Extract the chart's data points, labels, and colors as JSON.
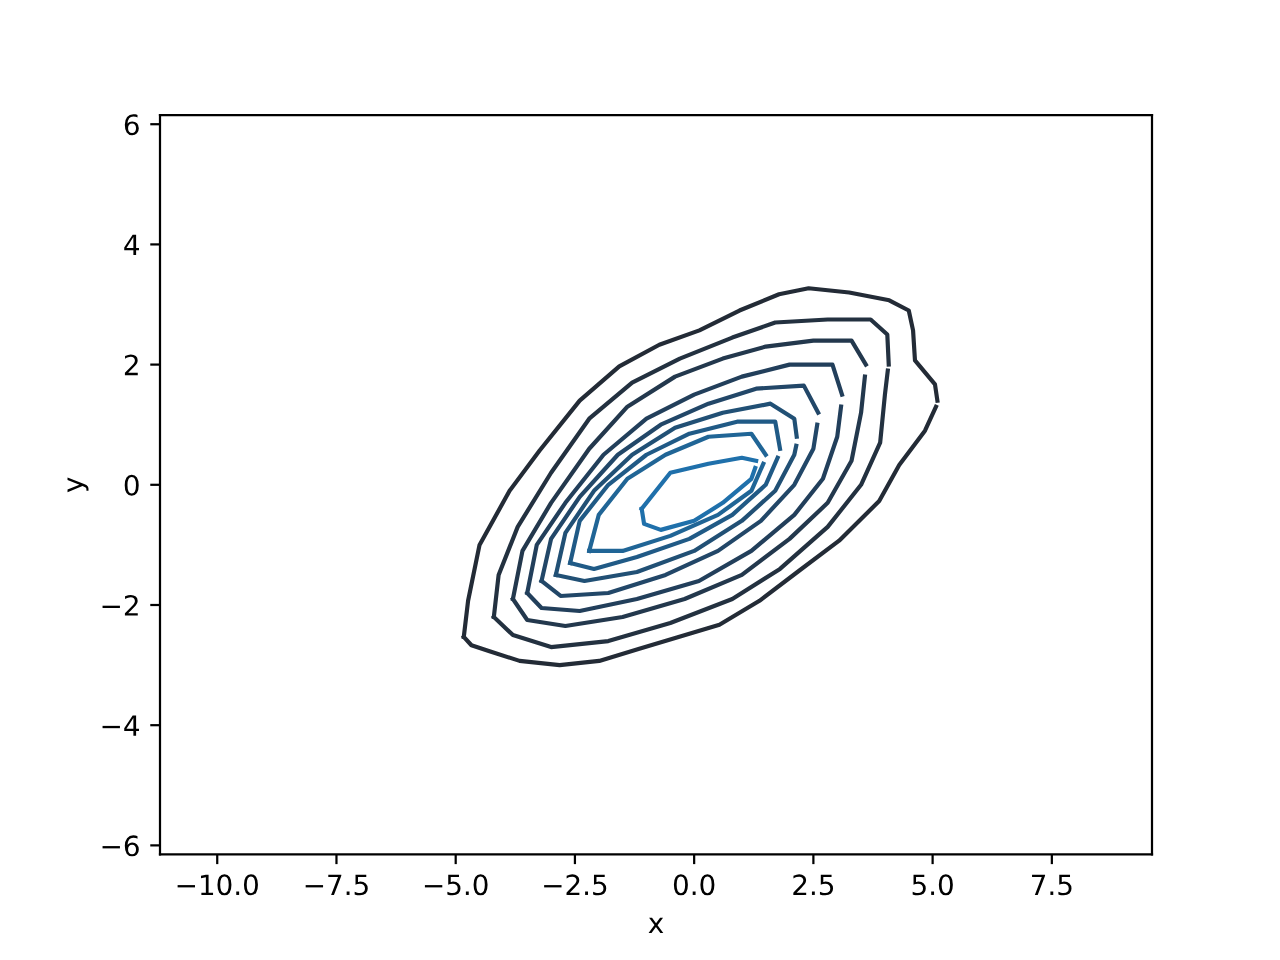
{
  "chart_data": {
    "type": "line",
    "xlabel": "x",
    "ylabel": "y",
    "xlim": [
      -11.2,
      9.6
    ],
    "ylim": [
      -6.15,
      6.15
    ],
    "xticks": [
      {
        "value": -10,
        "label": "−10.0"
      },
      {
        "value": -7.5,
        "label": "−7.5"
      },
      {
        "value": -5,
        "label": "−5.0"
      },
      {
        "value": -2.5,
        "label": "−2.5"
      },
      {
        "value": 0,
        "label": "0.0"
      },
      {
        "value": 2.5,
        "label": "2.5"
      },
      {
        "value": 5,
        "label": "5.0"
      },
      {
        "value": 7.5,
        "label": "7.5"
      }
    ],
    "yticks": [
      {
        "value": -6,
        "label": "−6"
      },
      {
        "value": -4,
        "label": "−4"
      },
      {
        "value": -2,
        "label": "−2"
      },
      0,
      2,
      4,
      6
    ],
    "series": [
      {
        "color": "#232b36",
        "x": [
          -4.83,
          -4.74,
          -4.5,
          -3.87,
          -3.24,
          -2.4,
          -1.57,
          -0.73,
          0.11,
          0.95,
          1.78,
          2.4,
          3.25,
          4.09,
          4.5,
          4.59,
          4.63,
          5.05,
          5.1
        ],
        "values": [
          -2.53,
          -1.93,
          -1.0,
          -0.1,
          0.57,
          1.4,
          1.97,
          2.33,
          2.57,
          2.9,
          3.17,
          3.27,
          3.2,
          3.07,
          2.9,
          2.57,
          2.07,
          1.67,
          1.4
        ]
      },
      {
        "color": "#232b36",
        "x": [
          -4.83,
          -4.67,
          -4.29,
          -3.66,
          -2.82,
          -1.99,
          -1.15,
          -0.31,
          0.53,
          1.37,
          2.2,
          3.04,
          3.88,
          4.3,
          4.84,
          5.07
        ],
        "values": [
          -2.53,
          -2.67,
          -2.77,
          -2.93,
          -3.0,
          -2.93,
          -2.73,
          -2.53,
          -2.33,
          -1.93,
          -1.43,
          -0.93,
          -0.27,
          0.33,
          0.9,
          1.3
        ]
      },
      {
        "color": "#233140",
        "x": [
          -4.2,
          -4.1,
          -3.7,
          -3.0,
          -2.2,
          -1.3,
          -0.3,
          0.8,
          1.7,
          2.8,
          3.7,
          4.05,
          4.08
        ],
        "values": [
          -2.2,
          -1.5,
          -0.7,
          0.2,
          1.1,
          1.7,
          2.1,
          2.45,
          2.7,
          2.75,
          2.75,
          2.5,
          2.0
        ]
      },
      {
        "color": "#233140",
        "x": [
          -4.2,
          -3.8,
          -3.0,
          -1.8,
          -0.5,
          0.8,
          1.8,
          2.8,
          3.5,
          3.9,
          4.0,
          4.06
        ],
        "values": [
          -2.2,
          -2.5,
          -2.7,
          -2.6,
          -2.3,
          -1.9,
          -1.4,
          -0.7,
          0.0,
          0.7,
          1.5,
          1.9
        ]
      },
      {
        "color": "#23384d",
        "x": [
          -3.8,
          -3.6,
          -3.0,
          -2.2,
          -1.4,
          -0.4,
          0.6,
          1.5,
          2.5,
          3.3,
          3.6
        ],
        "values": [
          -1.9,
          -1.1,
          -0.3,
          0.6,
          1.3,
          1.8,
          2.1,
          2.3,
          2.4,
          2.4,
          2.0
        ]
      },
      {
        "color": "#23384d",
        "x": [
          -3.8,
          -3.5,
          -2.7,
          -1.5,
          -0.2,
          1.0,
          2.0,
          2.8,
          3.3,
          3.5,
          3.58
        ],
        "values": [
          -1.9,
          -2.25,
          -2.35,
          -2.2,
          -1.9,
          -1.5,
          -0.9,
          -0.3,
          0.4,
          1.2,
          1.8
        ]
      },
      {
        "color": "#223f5b",
        "x": [
          -3.5,
          -3.3,
          -2.7,
          -1.9,
          -1.0,
          0.0,
          1.0,
          2.0,
          2.9,
          3.1
        ],
        "values": [
          -1.8,
          -1.0,
          -0.3,
          0.5,
          1.1,
          1.5,
          1.8,
          2.0,
          2.0,
          1.5
        ]
      },
      {
        "color": "#223f5b",
        "x": [
          -3.5,
          -3.2,
          -2.4,
          -1.2,
          0.1,
          1.2,
          2.1,
          2.7,
          3.0,
          3.08
        ],
        "values": [
          -1.8,
          -2.05,
          -2.1,
          -1.9,
          -1.6,
          -1.1,
          -0.5,
          0.1,
          0.8,
          1.3
        ]
      },
      {
        "color": "#224768",
        "x": [
          -3.2,
          -3.0,
          -2.4,
          -1.6,
          -0.7,
          0.3,
          1.3,
          2.3,
          2.6
        ],
        "values": [
          -1.6,
          -0.9,
          -0.2,
          0.5,
          1.0,
          1.35,
          1.6,
          1.65,
          1.2
        ]
      },
      {
        "color": "#224768",
        "x": [
          -3.2,
          -2.8,
          -1.8,
          -0.6,
          0.5,
          1.4,
          2.1,
          2.5,
          2.58
        ],
        "values": [
          -1.6,
          -1.85,
          -1.8,
          -1.5,
          -1.1,
          -0.6,
          0.0,
          0.6,
          1.0
        ]
      },
      {
        "color": "#215075",
        "x": [
          -2.9,
          -2.7,
          -2.1,
          -1.3,
          -0.4,
          0.6,
          1.6,
          2.1,
          2.15
        ],
        "values": [
          -1.5,
          -0.8,
          -0.1,
          0.5,
          0.95,
          1.2,
          1.35,
          1.1,
          0.8
        ]
      },
      {
        "color": "#215075",
        "x": [
          -2.9,
          -2.3,
          -1.2,
          0.0,
          1.0,
          1.7,
          2.1,
          2.14
        ],
        "values": [
          -1.5,
          -1.6,
          -1.45,
          -1.1,
          -0.6,
          -0.1,
          0.5,
          0.65
        ]
      },
      {
        "color": "#205a86",
        "x": [
          -2.6,
          -2.4,
          -1.8,
          -1.0,
          -0.1,
          0.9,
          1.7,
          1.8
        ],
        "values": [
          -1.3,
          -0.6,
          0.0,
          0.5,
          0.85,
          1.05,
          1.05,
          0.6
        ]
      },
      {
        "color": "#205a86",
        "x": [
          -2.6,
          -2.1,
          -1.2,
          -0.1,
          0.8,
          1.5,
          1.75
        ],
        "values": [
          -1.3,
          -1.4,
          -1.2,
          -0.9,
          -0.5,
          0.0,
          0.45
        ]
      },
      {
        "color": "#206596",
        "x": [
          -2.2,
          -2.0,
          -1.4,
          -0.6,
          0.3,
          1.2,
          1.5
        ],
        "values": [
          -1.1,
          -0.5,
          0.1,
          0.5,
          0.8,
          0.85,
          0.5
        ]
      },
      {
        "color": "#206596",
        "x": [
          -2.2,
          -1.5,
          -0.5,
          0.5,
          1.2,
          1.45
        ],
        "values": [
          -1.1,
          -1.1,
          -0.85,
          -0.5,
          -0.1,
          0.35
        ]
      },
      {
        "color": "#1f70ab",
        "x": [
          -1.1,
          -0.5,
          0.3,
          1.0,
          1.3
        ],
        "values": [
          -0.4,
          0.2,
          0.35,
          0.45,
          0.4
        ]
      },
      {
        "color": "#1f70ab",
        "x": [
          -1.1,
          -1.05,
          -0.7,
          0.0,
          0.6,
          1.2,
          1.28
        ],
        "values": [
          -0.4,
          -0.65,
          -0.75,
          -0.6,
          -0.3,
          0.1,
          0.28
        ]
      }
    ]
  }
}
